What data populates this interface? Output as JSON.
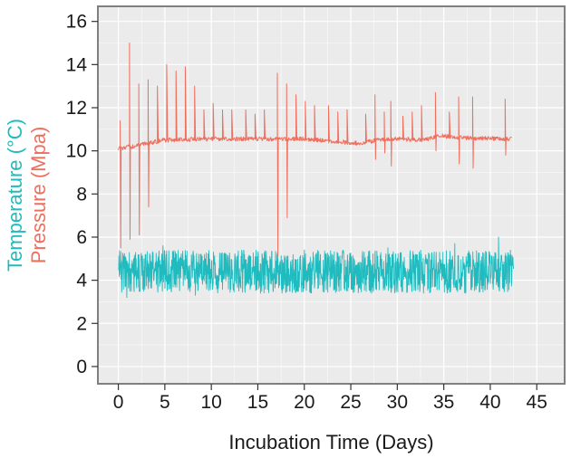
{
  "chart_data": {
    "type": "line",
    "xlabel": "Incubation Time (Days)",
    "ylabel_temperature": "Temperature (°C)",
    "ylabel_pressure": "Pressure (Mpa)",
    "xlim": [
      -2.2,
      48
    ],
    "ylim": [
      -0.8,
      16.7
    ],
    "xticks": [
      0,
      5,
      10,
      15,
      20,
      25,
      30,
      35,
      40,
      45
    ],
    "yticks": [
      0,
      2,
      4,
      6,
      8,
      10,
      12,
      14,
      16
    ],
    "grid": true,
    "colors": {
      "temperature": "#1fbbbf",
      "pressure": "#ef6f5f",
      "panel": "#ebebeb",
      "grid": "#ffffff",
      "frame": "#7f7f7f"
    },
    "series": [
      {
        "key": "pressure",
        "x_range": [
          0,
          42.3
        ],
        "baseline": [
          [
            0,
            10.1
          ],
          [
            2,
            10.25
          ],
          [
            5,
            10.5
          ],
          [
            10,
            10.55
          ],
          [
            17,
            10.55
          ],
          [
            20,
            10.55
          ],
          [
            26,
            10.35
          ],
          [
            28,
            10.5
          ],
          [
            30,
            10.55
          ],
          [
            33,
            10.5
          ],
          [
            34.5,
            10.7
          ],
          [
            37,
            10.6
          ],
          [
            42.3,
            10.55
          ]
        ],
        "noise": 0.1,
        "spikes": [
          {
            "x": 0.2,
            "peak": 11.4,
            "dip": 5.5
          },
          {
            "x": 1.2,
            "peak": 15.0,
            "dip": 5.9
          },
          {
            "x": 2.2,
            "peak": 13.1,
            "dip": 6.1
          },
          {
            "x": 3.2,
            "peak": 13.3,
            "dip": 7.4
          },
          {
            "x": 4.2,
            "peak": 13.0
          },
          {
            "x": 5.2,
            "peak": 14.0
          },
          {
            "x": 6.2,
            "peak": 13.7
          },
          {
            "x": 7.2,
            "peak": 13.9
          },
          {
            "x": 8.2,
            "peak": 13.0
          },
          {
            "x": 9.2,
            "peak": 11.9
          },
          {
            "x": 10.2,
            "peak": 12.2
          },
          {
            "x": 11.2,
            "peak": 11.9
          },
          {
            "x": 12.2,
            "peak": 11.9
          },
          {
            "x": 13.7,
            "peak": 11.9
          },
          {
            "x": 14.7,
            "peak": 11.7
          },
          {
            "x": 15.7,
            "peak": 11.9
          },
          {
            "x": 17.1,
            "peak": 13.6,
            "dip": 5.1
          },
          {
            "x": 18.1,
            "peak": 13.1,
            "dip": 6.9
          },
          {
            "x": 19.1,
            "peak": 12.6
          },
          {
            "x": 20.1,
            "peak": 12.3
          },
          {
            "x": 21.1,
            "peak": 12.1
          },
          {
            "x": 22.6,
            "peak": 12.1
          },
          {
            "x": 23.6,
            "peak": 11.8
          },
          {
            "x": 24.6,
            "peak": 11.9
          },
          {
            "x": 26.6,
            "peak": 11.7
          },
          {
            "x": 27.6,
            "peak": 12.6,
            "dip": 9.6
          },
          {
            "x": 28.6,
            "peak": 11.8,
            "dip": 9.9
          },
          {
            "x": 29.3,
            "peak": 12.3,
            "dip": 9.3
          },
          {
            "x": 30.6,
            "peak": 11.6
          },
          {
            "x": 31.6,
            "peak": 11.8
          },
          {
            "x": 32.6,
            "peak": 12.1
          },
          {
            "x": 34.1,
            "peak": 12.7,
            "dip": 10.0
          },
          {
            "x": 35.6,
            "peak": 11.8
          },
          {
            "x": 36.6,
            "peak": 12.5,
            "dip": 9.4
          },
          {
            "x": 38.1,
            "peak": 12.5,
            "dip": 9.2
          },
          {
            "x": 41.6,
            "peak": 12.4,
            "dip": 9.8
          }
        ]
      },
      {
        "key": "temperature",
        "x_range": [
          0,
          42.5
        ],
        "mean": 4.4,
        "band": [
          3.4,
          5.3
        ],
        "extremes": [
          {
            "x": 0.9,
            "value": 3.2
          },
          {
            "x": 4.8,
            "value": 5.6
          },
          {
            "x": 8.3,
            "value": 3.3
          },
          {
            "x": 15.3,
            "value": 3.4
          },
          {
            "x": 20.0,
            "value": 5.4
          },
          {
            "x": 29.0,
            "value": 5.5
          },
          {
            "x": 36.2,
            "value": 5.7
          },
          {
            "x": 40.9,
            "value": 6.0
          },
          {
            "x": 41.4,
            "value": 3.6
          }
        ]
      }
    ]
  }
}
